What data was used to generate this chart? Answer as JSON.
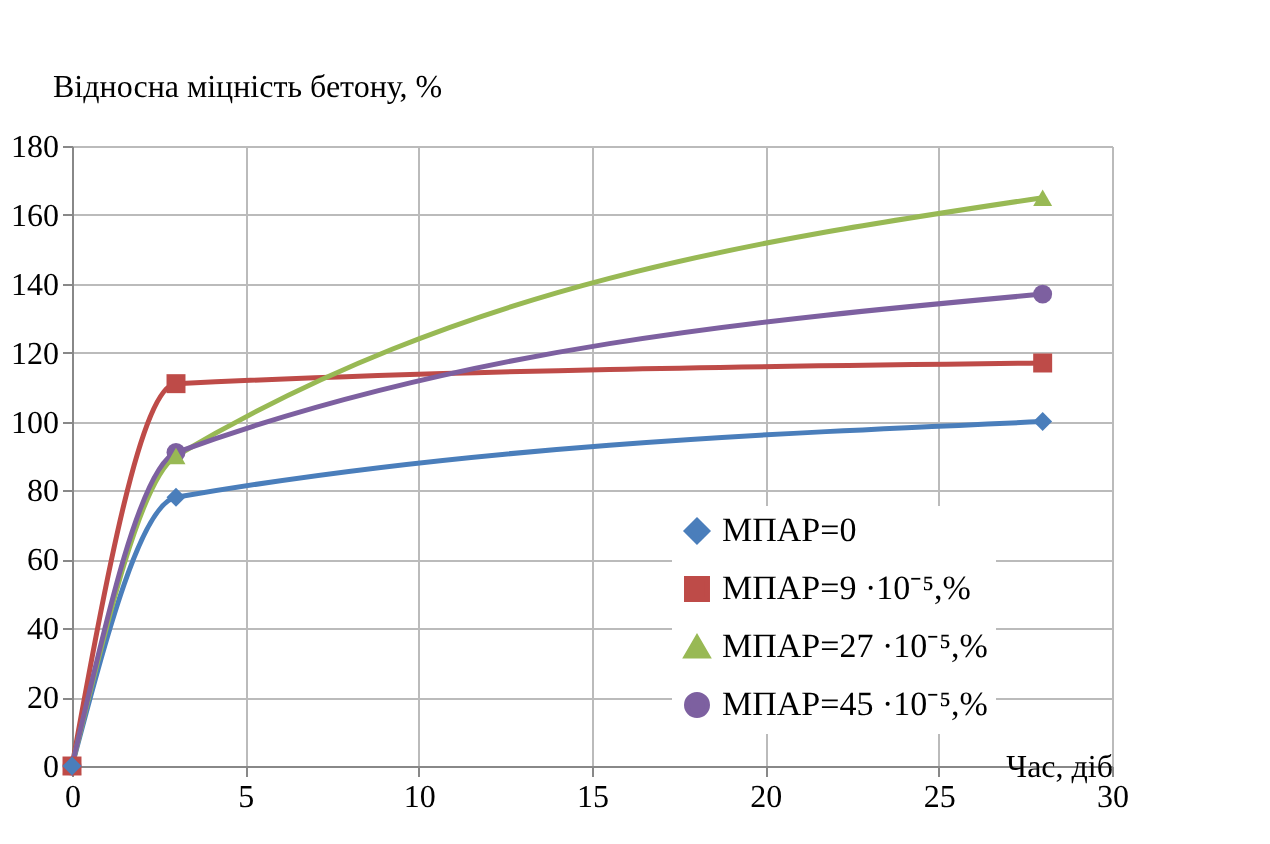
{
  "chart_data": {
    "type": "line",
    "ylabel": "Відносна міцність бетону, %",
    "xlabel": "Час, діб",
    "x": [
      0,
      3,
      28
    ],
    "series": [
      {
        "name": "МПАР=0",
        "color": "#4a7ebb",
        "marker": "diamond",
        "values": [
          0,
          78,
          100
        ]
      },
      {
        "name": "МПАР=9 ·10⁻⁵,%",
        "color": "#be4b48",
        "marker": "square",
        "values": [
          0,
          111,
          117
        ]
      },
      {
        "name": "МПАР=27 ·10⁻⁵,%",
        "color": "#98b954",
        "marker": "triangle",
        "values": [
          0,
          90,
          165
        ]
      },
      {
        "name": "МПАР=45 ·10⁻⁵,%",
        "color": "#7d60a0",
        "marker": "circle",
        "values": [
          0,
          91,
          137
        ]
      }
    ],
    "xlim": [
      0,
      30
    ],
    "xticks": [
      0,
      5,
      10,
      15,
      20,
      25,
      30
    ],
    "ylim": [
      0,
      180
    ],
    "yticks": [
      0,
      20,
      40,
      60,
      80,
      100,
      120,
      140,
      160,
      180
    ],
    "grid": true,
    "legend": "right",
    "line_style": "solid"
  }
}
